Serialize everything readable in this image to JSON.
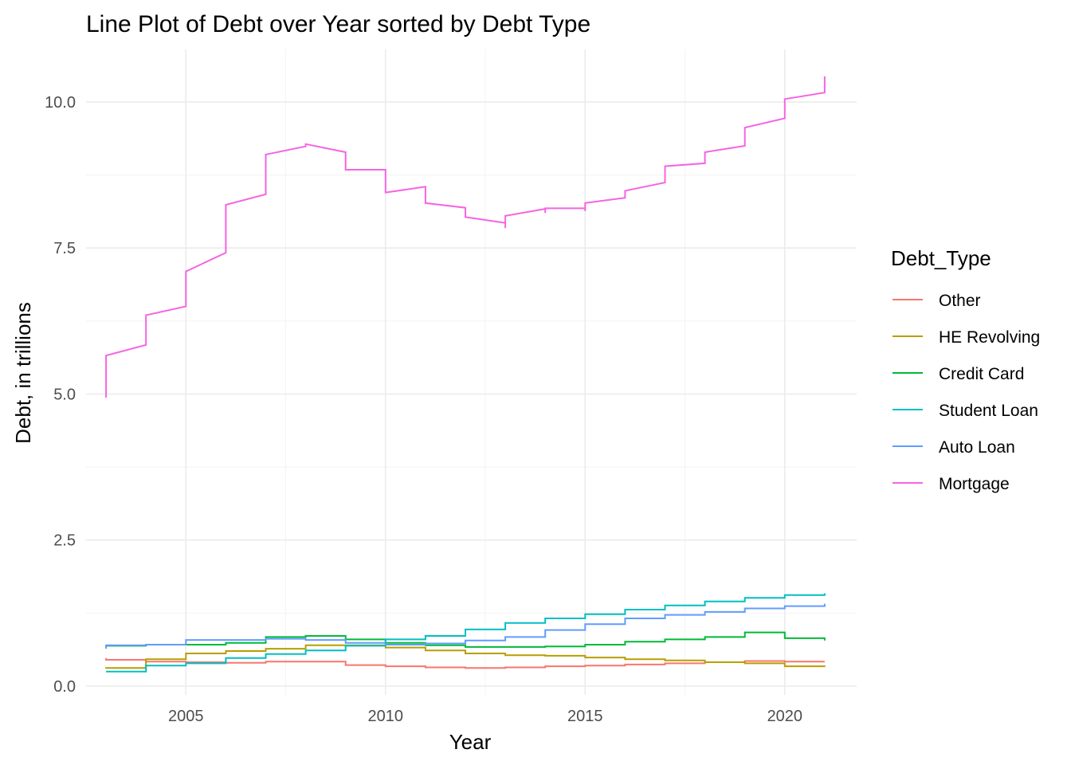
{
  "chart_data": {
    "type": "line",
    "title": "Line Plot of Debt over Year sorted by Debt Type",
    "xlabel": "Year",
    "ylabel": "Debt, in trillions",
    "xlim": [
      2002.5,
      2021.8
    ],
    "ylim": [
      -0.15,
      10.9
    ],
    "x_ticks": [
      2005,
      2010,
      2015,
      2020
    ],
    "x_tick_labels": [
      "2005",
      "2010",
      "2015",
      "2020"
    ],
    "y_ticks": [
      0,
      2.5,
      5,
      7.5,
      10
    ],
    "y_tick_labels": [
      "0.0",
      "2.5",
      "5.0",
      "7.5",
      "10.0"
    ],
    "grid": true,
    "legend": {
      "title": "Debt_Type",
      "position": "right"
    },
    "step": true,
    "series": [
      {
        "name": "Other",
        "color": "#F8766D",
        "points": [
          [
            2003,
            0.48
          ],
          [
            2003,
            0.45
          ],
          [
            2004,
            0.45
          ],
          [
            2004,
            0.42
          ],
          [
            2005,
            0.42
          ],
          [
            2005,
            0.41
          ],
          [
            2006,
            0.41
          ],
          [
            2006,
            0.4
          ],
          [
            2007,
            0.4
          ],
          [
            2007,
            0.42
          ],
          [
            2008,
            0.42
          ],
          [
            2008,
            0.42
          ],
          [
            2009,
            0.42
          ],
          [
            2009,
            0.36
          ],
          [
            2010,
            0.36
          ],
          [
            2010,
            0.34
          ],
          [
            2011,
            0.34
          ],
          [
            2011,
            0.32
          ],
          [
            2012,
            0.32
          ],
          [
            2012,
            0.31
          ],
          [
            2013,
            0.31
          ],
          [
            2013,
            0.32
          ],
          [
            2014,
            0.32
          ],
          [
            2014,
            0.34
          ],
          [
            2015,
            0.34
          ],
          [
            2015,
            0.35
          ],
          [
            2016,
            0.35
          ],
          [
            2016,
            0.37
          ],
          [
            2017,
            0.37
          ],
          [
            2017,
            0.39
          ],
          [
            2018,
            0.39
          ],
          [
            2018,
            0.41
          ],
          [
            2019,
            0.41
          ],
          [
            2019,
            0.43
          ],
          [
            2020,
            0.43
          ],
          [
            2020,
            0.42
          ],
          [
            2021,
            0.42
          ],
          [
            2021,
            0.42
          ]
        ]
      },
      {
        "name": "HE Revolving",
        "color": "#B79F00",
        "points": [
          [
            2003,
            0.3
          ],
          [
            2003,
            0.31
          ],
          [
            2004,
            0.31
          ],
          [
            2004,
            0.46
          ],
          [
            2005,
            0.46
          ],
          [
            2005,
            0.56
          ],
          [
            2006,
            0.56
          ],
          [
            2006,
            0.6
          ],
          [
            2007,
            0.6
          ],
          [
            2007,
            0.64
          ],
          [
            2008,
            0.64
          ],
          [
            2008,
            0.7
          ],
          [
            2009,
            0.7
          ],
          [
            2009,
            0.7
          ],
          [
            2010,
            0.7
          ],
          [
            2010,
            0.66
          ],
          [
            2011,
            0.66
          ],
          [
            2011,
            0.61
          ],
          [
            2012,
            0.61
          ],
          [
            2012,
            0.56
          ],
          [
            2013,
            0.56
          ],
          [
            2013,
            0.53
          ],
          [
            2014,
            0.53
          ],
          [
            2014,
            0.52
          ],
          [
            2015,
            0.52
          ],
          [
            2015,
            0.49
          ],
          [
            2016,
            0.49
          ],
          [
            2016,
            0.46
          ],
          [
            2017,
            0.46
          ],
          [
            2017,
            0.44
          ],
          [
            2018,
            0.44
          ],
          [
            2018,
            0.41
          ],
          [
            2019,
            0.41
          ],
          [
            2019,
            0.39
          ],
          [
            2020,
            0.39
          ],
          [
            2020,
            0.34
          ],
          [
            2021,
            0.34
          ],
          [
            2021,
            0.33
          ]
        ]
      },
      {
        "name": "Credit Card",
        "color": "#00BA38",
        "points": [
          [
            2003,
            0.69
          ],
          [
            2003,
            0.69
          ],
          [
            2004,
            0.69
          ],
          [
            2004,
            0.71
          ],
          [
            2005,
            0.71
          ],
          [
            2005,
            0.71
          ],
          [
            2006,
            0.71
          ],
          [
            2006,
            0.74
          ],
          [
            2007,
            0.74
          ],
          [
            2007,
            0.84
          ],
          [
            2008,
            0.84
          ],
          [
            2008,
            0.86
          ],
          [
            2009,
            0.86
          ],
          [
            2009,
            0.8
          ],
          [
            2010,
            0.8
          ],
          [
            2010,
            0.74
          ],
          [
            2011,
            0.74
          ],
          [
            2011,
            0.7
          ],
          [
            2012,
            0.7
          ],
          [
            2012,
            0.67
          ],
          [
            2013,
            0.67
          ],
          [
            2013,
            0.67
          ],
          [
            2014,
            0.67
          ],
          [
            2014,
            0.68
          ],
          [
            2015,
            0.68
          ],
          [
            2015,
            0.71
          ],
          [
            2016,
            0.71
          ],
          [
            2016,
            0.76
          ],
          [
            2017,
            0.76
          ],
          [
            2017,
            0.8
          ],
          [
            2018,
            0.8
          ],
          [
            2018,
            0.84
          ],
          [
            2019,
            0.84
          ],
          [
            2019,
            0.92
          ],
          [
            2020,
            0.92
          ],
          [
            2020,
            0.82
          ],
          [
            2021,
            0.82
          ],
          [
            2021,
            0.78
          ]
        ]
      },
      {
        "name": "Student Loan",
        "color": "#00BFC4",
        "points": [
          [
            2003,
            0.25
          ],
          [
            2003,
            0.25
          ],
          [
            2004,
            0.25
          ],
          [
            2004,
            0.35
          ],
          [
            2005,
            0.35
          ],
          [
            2005,
            0.39
          ],
          [
            2006,
            0.39
          ],
          [
            2006,
            0.48
          ],
          [
            2007,
            0.48
          ],
          [
            2007,
            0.55
          ],
          [
            2008,
            0.55
          ],
          [
            2008,
            0.61
          ],
          [
            2009,
            0.61
          ],
          [
            2009,
            0.69
          ],
          [
            2010,
            0.69
          ],
          [
            2010,
            0.8
          ],
          [
            2011,
            0.8
          ],
          [
            2011,
            0.86
          ],
          [
            2012,
            0.86
          ],
          [
            2012,
            0.97
          ],
          [
            2013,
            0.97
          ],
          [
            2013,
            1.08
          ],
          [
            2014,
            1.08
          ],
          [
            2014,
            1.16
          ],
          [
            2015,
            1.16
          ],
          [
            2015,
            1.23
          ],
          [
            2016,
            1.23
          ],
          [
            2016,
            1.31
          ],
          [
            2017,
            1.31
          ],
          [
            2017,
            1.38
          ],
          [
            2018,
            1.38
          ],
          [
            2018,
            1.45
          ],
          [
            2019,
            1.45
          ],
          [
            2019,
            1.51
          ],
          [
            2020,
            1.51
          ],
          [
            2020,
            1.56
          ],
          [
            2021,
            1.56
          ],
          [
            2021,
            1.59
          ]
        ]
      },
      {
        "name": "Auto Loan",
        "color": "#619CFF",
        "points": [
          [
            2003,
            0.64
          ],
          [
            2003,
            0.7
          ],
          [
            2004,
            0.7
          ],
          [
            2004,
            0.71
          ],
          [
            2005,
            0.71
          ],
          [
            2005,
            0.79
          ],
          [
            2006,
            0.79
          ],
          [
            2006,
            0.79
          ],
          [
            2007,
            0.79
          ],
          [
            2007,
            0.81
          ],
          [
            2008,
            0.81
          ],
          [
            2008,
            0.79
          ],
          [
            2009,
            0.79
          ],
          [
            2009,
            0.74
          ],
          [
            2010,
            0.74
          ],
          [
            2010,
            0.71
          ],
          [
            2011,
            0.71
          ],
          [
            2011,
            0.73
          ],
          [
            2012,
            0.73
          ],
          [
            2012,
            0.78
          ],
          [
            2013,
            0.78
          ],
          [
            2013,
            0.84
          ],
          [
            2014,
            0.84
          ],
          [
            2014,
            0.96
          ],
          [
            2015,
            0.96
          ],
          [
            2015,
            1.06
          ],
          [
            2016,
            1.06
          ],
          [
            2016,
            1.16
          ],
          [
            2017,
            1.16
          ],
          [
            2017,
            1.22
          ],
          [
            2018,
            1.22
          ],
          [
            2018,
            1.27
          ],
          [
            2019,
            1.27
          ],
          [
            2019,
            1.33
          ],
          [
            2020,
            1.33
          ],
          [
            2020,
            1.37
          ],
          [
            2021,
            1.37
          ],
          [
            2021,
            1.41
          ]
        ]
      },
      {
        "name": "Mortgage",
        "color": "#F564E3",
        "points": [
          [
            2003,
            4.94
          ],
          [
            2003,
            5.66
          ],
          [
            2004,
            5.84
          ],
          [
            2004,
            6.35
          ],
          [
            2005,
            6.5
          ],
          [
            2005,
            7.1
          ],
          [
            2006,
            7.42
          ],
          [
            2006,
            8.24
          ],
          [
            2007,
            8.42
          ],
          [
            2007,
            9.1
          ],
          [
            2008,
            9.24
          ],
          [
            2008,
            9.28
          ],
          [
            2009,
            9.14
          ],
          [
            2009,
            8.84
          ],
          [
            2010,
            8.84
          ],
          [
            2010,
            8.45
          ],
          [
            2011,
            8.55
          ],
          [
            2011,
            8.27
          ],
          [
            2012,
            8.19
          ],
          [
            2012,
            8.03
          ],
          [
            2013,
            7.93
          ],
          [
            2013,
            7.84
          ],
          [
            2013,
            8.05
          ],
          [
            2014,
            8.17
          ],
          [
            2014,
            8.1
          ],
          [
            2014,
            8.18
          ],
          [
            2015,
            8.18
          ],
          [
            2015,
            8.13
          ],
          [
            2015,
            8.27
          ],
          [
            2016,
            8.36
          ],
          [
            2016,
            8.48
          ],
          [
            2017,
            8.62
          ],
          [
            2017,
            8.9
          ],
          [
            2018,
            8.95
          ],
          [
            2018,
            9.14
          ],
          [
            2019,
            9.25
          ],
          [
            2019,
            9.56
          ],
          [
            2020,
            9.72
          ],
          [
            2020,
            10.05
          ],
          [
            2021,
            10.16
          ],
          [
            2021,
            10.44
          ]
        ]
      }
    ]
  }
}
